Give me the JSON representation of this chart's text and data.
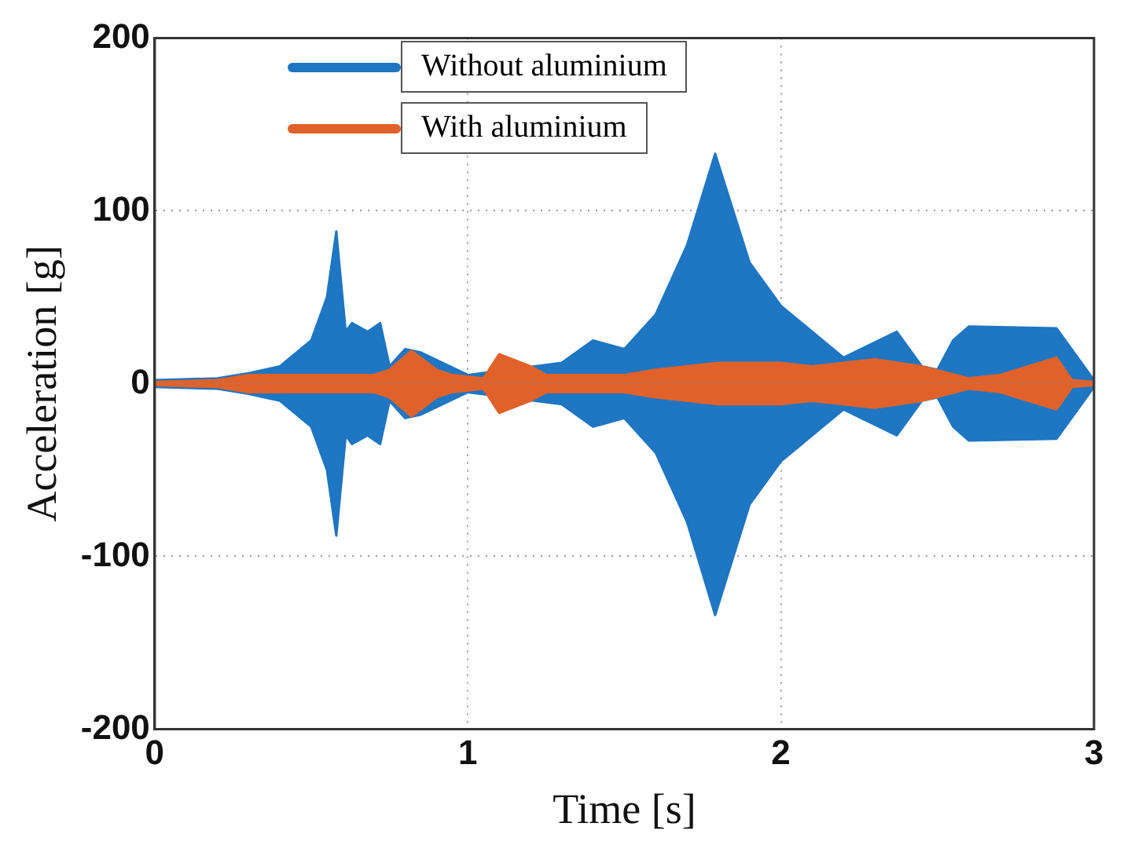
{
  "chart_data": {
    "type": "area",
    "xlabel": "Time [s]",
    "ylabel": "Acceleration [g]",
    "xlim": [
      0,
      3
    ],
    "xticks": [
      0,
      1,
      2,
      3
    ],
    "ylim": [
      -200,
      200
    ],
    "yticks": [
      -200,
      -100,
      0,
      100,
      200
    ],
    "grid": true,
    "legend": "top left",
    "series": [
      {
        "name": "Without aluminium",
        "color": "#1f76c2",
        "x": [
          0,
          0.2,
          0.3,
          0.4,
          0.5,
          0.55,
          0.58,
          0.61,
          0.63,
          0.68,
          0.72,
          0.75,
          0.8,
          0.85,
          0.9,
          1.0,
          1.2,
          1.3,
          1.4,
          1.5,
          1.6,
          1.7,
          1.79,
          1.9,
          2.0,
          2.1,
          2.2,
          2.3,
          2.37,
          2.45,
          2.5,
          2.55,
          2.6,
          2.88,
          2.9,
          3.0
        ],
        "values": [
          2,
          3,
          6,
          10,
          25,
          50,
          88,
          30,
          35,
          30,
          35,
          10,
          20,
          18,
          null,
          5,
          null,
          12,
          25,
          20,
          40,
          80,
          133,
          70,
          45,
          30,
          15,
          null,
          30,
          10,
          8,
          25,
          33,
          32,
          null,
          2
        ]
      },
      {
        "color": "#1f76c2",
        "x": [
          0,
          0.2,
          0.3,
          0.4,
          0.5,
          0.55,
          0.58,
          0.61,
          0.63,
          0.68,
          0.72,
          0.75,
          0.8,
          0.85,
          0.9,
          1.0,
          1.2,
          1.3,
          1.4,
          1.5,
          1.6,
          1.7,
          1.79,
          1.9,
          2.0,
          2.1,
          2.2,
          2.3,
          2.37,
          2.45,
          2.5,
          2.55,
          2.6,
          2.88,
          2.9,
          3.0
        ],
        "values": [
          -2,
          -3,
          -6,
          -10,
          -25,
          -50,
          -88,
          -30,
          -35,
          -30,
          -35,
          -10,
          -20,
          -18,
          null,
          -5,
          null,
          -12,
          -25,
          -20,
          -40,
          -80,
          -134,
          -70,
          -45,
          -30,
          -15,
          null,
          -30,
          -10,
          -8,
          -25,
          -33,
          -32,
          null,
          -2
        ]
      },
      {
        "name": "With aluminium",
        "color": "#e0622a",
        "x": [
          0,
          0.2,
          0.3,
          0.7,
          0.75,
          0.82,
          0.9,
          0.95,
          1.05,
          1.1,
          1.2,
          1.25,
          1.5,
          1.6,
          1.8,
          2.0,
          2.1,
          2.3,
          2.45,
          2.6,
          2.7,
          2.88,
          2.93,
          3.0
        ],
        "values": [
          1,
          2,
          5,
          5,
          8,
          19,
          8,
          5,
          3,
          17,
          10,
          5,
          5,
          8,
          12,
          12,
          10,
          14,
          10,
          3,
          5,
          15,
          2,
          1
        ]
      },
      {
        "color": "#e0622a",
        "x": [
          0,
          0.2,
          0.3,
          0.7,
          0.75,
          0.82,
          0.9,
          0.95,
          1.05,
          1.1,
          1.2,
          1.25,
          1.5,
          1.6,
          1.8,
          2.0,
          2.1,
          2.3,
          2.45,
          2.6,
          2.7,
          2.88,
          2.93,
          3.0
        ],
        "values": [
          -1,
          -2,
          -5,
          -5,
          -8,
          -19,
          -8,
          -5,
          -3,
          -17,
          -10,
          -5,
          -5,
          -8,
          -12,
          -12,
          -10,
          -14,
          -10,
          -3,
          -5,
          -15,
          -2,
          -1
        ]
      }
    ]
  }
}
